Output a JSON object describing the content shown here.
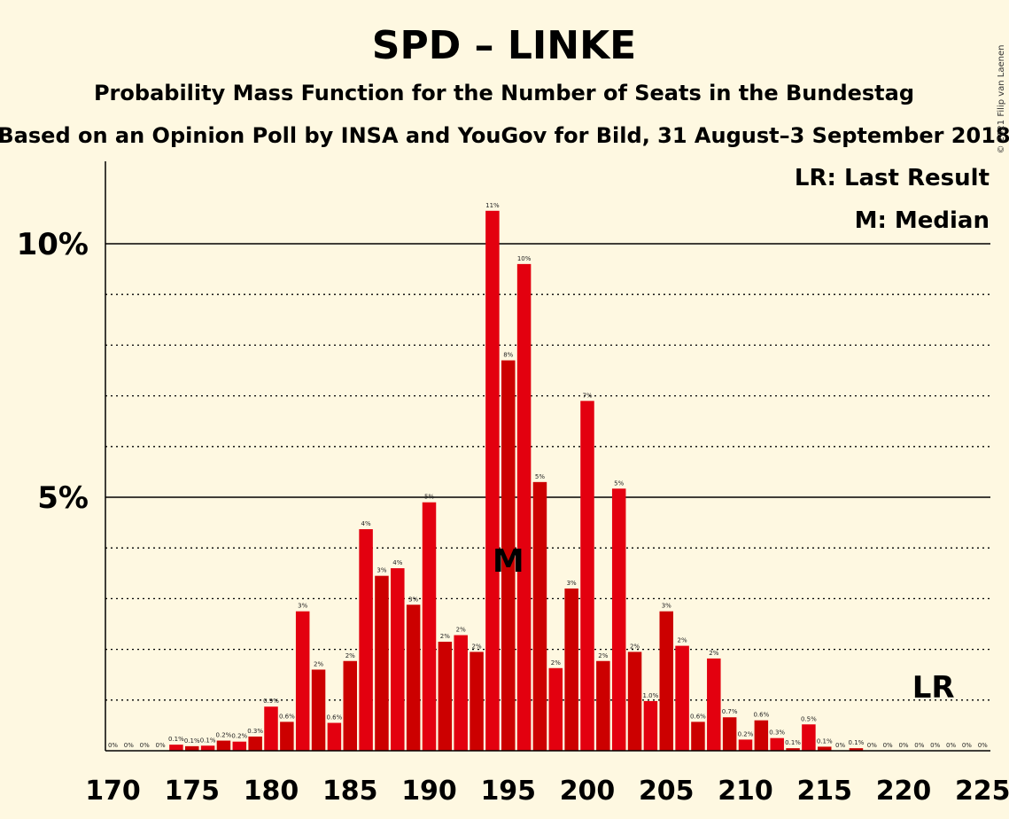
{
  "chart_data": {
    "type": "bar",
    "title": "SPD – LINKE",
    "subtitle": "Probability Mass Function for the Number of Seats in the Bundestag",
    "subtitle2": "Based on an Opinion Poll by INSA and YouGov for Bild, 31 August–3 September 2018",
    "copyright": "© 2021 Filip van Laenen",
    "legend": {
      "last_result": "LR: Last Result",
      "median": "M: Median",
      "placement": "top-right"
    },
    "xlabel": "",
    "ylabel": "",
    "x_ticks": [
      "170",
      "175",
      "180",
      "185",
      "190",
      "195",
      "200",
      "205",
      "210",
      "215",
      "220",
      "225"
    ],
    "y_ticks": [
      {
        "value": 5,
        "label": "5%"
      },
      {
        "value": 10,
        "label": "10%"
      }
    ],
    "ylim": [
      0,
      11.5
    ],
    "grid": "dotted every 1%, solid at 5% and 10%",
    "median_marker": {
      "seat": 195,
      "label": "M"
    },
    "last_result_marker": {
      "seat": 222,
      "label": "LR"
    },
    "colors": {
      "bar_primary": "#E3000F",
      "bar_secondary": "#CC0000",
      "background": "#FEF8E1"
    },
    "bars": [
      {
        "seat": 170,
        "value": 0,
        "label": "0%"
      },
      {
        "seat": 171,
        "value": 0,
        "label": "0%"
      },
      {
        "seat": 172,
        "value": 0,
        "label": "0%"
      },
      {
        "seat": 173,
        "value": 0,
        "label": "0%"
      },
      {
        "seat": 174,
        "value": 0.12,
        "label": "0.1%"
      },
      {
        "seat": 175,
        "value": 0.09,
        "label": "0.1%"
      },
      {
        "seat": 176,
        "value": 0.1,
        "label": "0.1%"
      },
      {
        "seat": 177,
        "value": 0.2,
        "label": "0.2%"
      },
      {
        "seat": 178,
        "value": 0.18,
        "label": "0.2%"
      },
      {
        "seat": 179,
        "value": 0.28,
        "label": "0.3%"
      },
      {
        "seat": 180,
        "value": 0.87,
        "label": "0.9%"
      },
      {
        "seat": 181,
        "value": 0.57,
        "label": "0.6%"
      },
      {
        "seat": 182,
        "value": 2.75,
        "label": "3%"
      },
      {
        "seat": 183,
        "value": 1.6,
        "label": "2%"
      },
      {
        "seat": 184,
        "value": 0.55,
        "label": "0.6%"
      },
      {
        "seat": 185,
        "value": 1.77,
        "label": "2%"
      },
      {
        "seat": 186,
        "value": 4.37,
        "label": "4%"
      },
      {
        "seat": 187,
        "value": 3.45,
        "label": "3%"
      },
      {
        "seat": 188,
        "value": 3.6,
        "label": "4%"
      },
      {
        "seat": 189,
        "value": 2.88,
        "label": "3%"
      },
      {
        "seat": 190,
        "value": 4.9,
        "label": "5%"
      },
      {
        "seat": 191,
        "value": 2.15,
        "label": "2%"
      },
      {
        "seat": 192,
        "value": 2.28,
        "label": "2%"
      },
      {
        "seat": 193,
        "value": 1.95,
        "label": "2%"
      },
      {
        "seat": 194,
        "value": 10.65,
        "label": "11%"
      },
      {
        "seat": 195,
        "value": 7.7,
        "label": "8%"
      },
      {
        "seat": 196,
        "value": 9.6,
        "label": "10%"
      },
      {
        "seat": 197,
        "value": 5.3,
        "label": "5%"
      },
      {
        "seat": 198,
        "value": 1.63,
        "label": "2%"
      },
      {
        "seat": 199,
        "value": 3.2,
        "label": "3%"
      },
      {
        "seat": 200,
        "value": 6.9,
        "label": "7%"
      },
      {
        "seat": 201,
        "value": 1.77,
        "label": "2%"
      },
      {
        "seat": 202,
        "value": 5.17,
        "label": "5%"
      },
      {
        "seat": 203,
        "value": 1.95,
        "label": "2%"
      },
      {
        "seat": 204,
        "value": 0.98,
        "label": "1.0%"
      },
      {
        "seat": 205,
        "value": 2.75,
        "label": "3%"
      },
      {
        "seat": 206,
        "value": 2.07,
        "label": "2%"
      },
      {
        "seat": 207,
        "value": 0.57,
        "label": "0.6%"
      },
      {
        "seat": 208,
        "value": 1.82,
        "label": "2%"
      },
      {
        "seat": 209,
        "value": 0.66,
        "label": "0.7%"
      },
      {
        "seat": 210,
        "value": 0.22,
        "label": "0.2%"
      },
      {
        "seat": 211,
        "value": 0.6,
        "label": "0.6%"
      },
      {
        "seat": 212,
        "value": 0.25,
        "label": "0.3%"
      },
      {
        "seat": 213,
        "value": 0.05,
        "label": "0.1%"
      },
      {
        "seat": 214,
        "value": 0.52,
        "label": "0.5%"
      },
      {
        "seat": 215,
        "value": 0.08,
        "label": "0.1%"
      },
      {
        "seat": 216,
        "value": 0,
        "label": "0%"
      },
      {
        "seat": 217,
        "value": 0.05,
        "label": "0.1%"
      },
      {
        "seat": 218,
        "value": 0,
        "label": "0%"
      },
      {
        "seat": 219,
        "value": 0,
        "label": "0%"
      },
      {
        "seat": 220,
        "value": 0,
        "label": "0%"
      },
      {
        "seat": 221,
        "value": 0,
        "label": "0%"
      },
      {
        "seat": 222,
        "value": 0,
        "label": "0%"
      },
      {
        "seat": 223,
        "value": 0,
        "label": "0%"
      },
      {
        "seat": 224,
        "value": 0,
        "label": "0%"
      },
      {
        "seat": 225,
        "value": 0,
        "label": "0%"
      }
    ]
  }
}
